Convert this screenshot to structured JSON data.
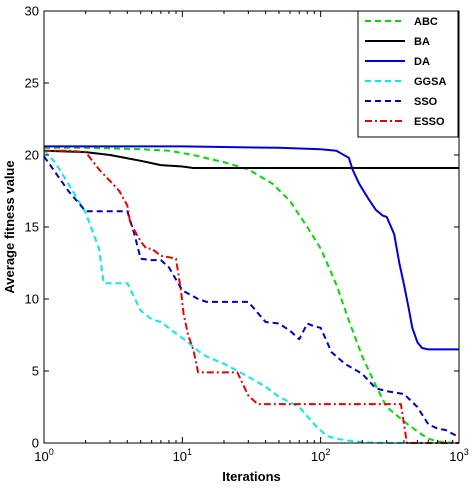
{
  "chart_data": {
    "type": "line",
    "title": "",
    "xlabel": "Iterations",
    "ylabel": "Average fitness value",
    "xscale": "log",
    "xlim": [
      1,
      1000
    ],
    "ylim": [
      0,
      30
    ],
    "x_ticks": [
      {
        "value": 1,
        "base": "10",
        "exp": "0"
      },
      {
        "value": 10,
        "base": "10",
        "exp": "1"
      },
      {
        "value": 100,
        "base": "10",
        "exp": "2"
      },
      {
        "value": 1000,
        "base": "10",
        "exp": "3"
      }
    ],
    "y_ticks": [
      0,
      5,
      10,
      15,
      20,
      25,
      30
    ],
    "grid": false,
    "legend_position": "top-right",
    "series": [
      {
        "name": "ABC",
        "color": "#00dd00",
        "dash": "dashed",
        "x": [
          1,
          2,
          5,
          8,
          12,
          20,
          30,
          45,
          60,
          80,
          100,
          130,
          160,
          200,
          250,
          300,
          400,
          500,
          600,
          700,
          800,
          1000
        ],
        "y": [
          20.5,
          20.5,
          20.4,
          20.3,
          20.0,
          19.5,
          19.0,
          18.0,
          16.8,
          15.0,
          13.5,
          11.0,
          8.5,
          6.0,
          4.0,
          2.5,
          1.5,
          0.8,
          0.3,
          0.1,
          0.05,
          0
        ]
      },
      {
        "name": "BA",
        "color": "#000000",
        "dash": "solid",
        "x": [
          1,
          2,
          3,
          5,
          7,
          10,
          12,
          15,
          20,
          50,
          100,
          1000
        ],
        "y": [
          20.3,
          20.2,
          20.0,
          19.6,
          19.3,
          19.2,
          19.1,
          19.1,
          19.1,
          19.1,
          19.1,
          19.1
        ]
      },
      {
        "name": "DA",
        "color": "#0000dd",
        "dash": "solid",
        "x": [
          1,
          10,
          50,
          100,
          130,
          160,
          170,
          190,
          220,
          250,
          280,
          300,
          340,
          370,
          400,
          430,
          460,
          500,
          540,
          600,
          700,
          800,
          1000
        ],
        "y": [
          20.6,
          20.6,
          20.5,
          20.4,
          20.3,
          19.8,
          19.0,
          18.0,
          17.0,
          16.2,
          15.8,
          15.7,
          14.5,
          12.5,
          11.0,
          9.5,
          8.0,
          7.0,
          6.6,
          6.5,
          6.5,
          6.5,
          6.5
        ]
      },
      {
        "name": "GGSA",
        "color": "#00eeee",
        "dash": "dashed",
        "x": [
          1,
          1.2,
          1.5,
          2,
          2.5,
          2.7,
          3.2,
          4,
          5,
          6,
          7,
          9,
          11,
          13,
          15,
          20,
          25,
          30,
          40,
          50,
          70,
          90,
          110,
          130,
          150,
          200,
          300,
          500,
          1000
        ],
        "y": [
          20.3,
          19.5,
          18.0,
          16.0,
          13.5,
          11.1,
          11.1,
          11.1,
          9.2,
          8.6,
          8.4,
          7.6,
          7.0,
          6.4,
          6.0,
          5.5,
          5.0,
          4.6,
          3.9,
          3.2,
          2.5,
          1.3,
          0.5,
          0.3,
          0.2,
          0.05,
          0,
          0,
          0
        ]
      },
      {
        "name": "SSO",
        "color": "#0000cc",
        "dash": "dashed",
        "x": [
          1,
          1.5,
          2,
          3,
          4,
          4.5,
          5,
          6,
          7,
          8,
          10,
          13,
          15,
          20,
          30,
          40,
          50,
          60,
          70,
          80,
          90,
          100,
          120,
          150,
          200,
          250,
          300,
          400,
          500,
          600,
          700,
          800,
          1000
        ],
        "y": [
          19.9,
          17.5,
          16.1,
          16.1,
          16.1,
          14.5,
          12.8,
          12.7,
          12.7,
          12.2,
          10.6,
          10.0,
          9.8,
          9.8,
          9.8,
          8.4,
          8.3,
          7.8,
          7.2,
          8.3,
          8.1,
          8.0,
          6.3,
          5.5,
          4.8,
          3.8,
          3.6,
          3.4,
          2.5,
          1.3,
          1.0,
          0.9,
          0.4
        ]
      },
      {
        "name": "ESSO",
        "color": "#ee0000",
        "dash": "dashdot",
        "x": [
          1,
          1.5,
          2,
          2.5,
          3,
          3.5,
          4,
          4.2,
          5,
          5.5,
          6,
          7,
          8,
          9,
          9.8,
          10.2,
          11,
          12,
          13,
          15,
          20,
          25,
          30,
          35,
          100,
          200,
          300,
          380,
          420,
          1000
        ],
        "y": [
          20.3,
          20.3,
          20.2,
          19.0,
          18.2,
          17.5,
          16.5,
          15.3,
          14.0,
          13.5,
          13.5,
          13.0,
          12.9,
          12.8,
          10.5,
          9.0,
          7.5,
          6.5,
          4.9,
          4.9,
          4.9,
          4.9,
          3.3,
          2.7,
          2.7,
          2.7,
          2.7,
          2.7,
          0,
          0
        ]
      }
    ]
  }
}
